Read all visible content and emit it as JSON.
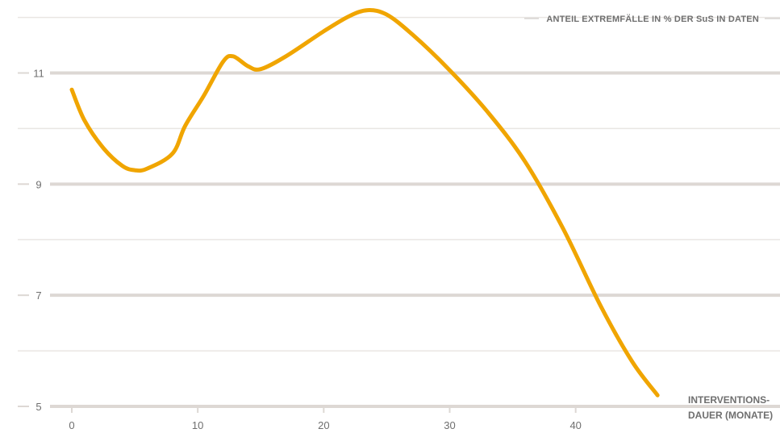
{
  "chart_data": {
    "type": "line",
    "title": "",
    "ylabel": "ANTEIL EXTREMFÄLLE IN % DER SuS IN DATEN",
    "xlabel_lines": [
      "INTERVENTIONS-",
      "DAUER (MONATE)"
    ],
    "xlim": [
      0,
      47
    ],
    "ylim": [
      5,
      12.2
    ],
    "x_ticks": [
      0,
      10,
      20,
      30,
      40
    ],
    "y_ticks": [
      5,
      7,
      9,
      11
    ],
    "y_minor_ticks": [
      6,
      8,
      10,
      12
    ],
    "grid": true,
    "line_color": "#f0a500",
    "grid_major_color": "#ddd8d4",
    "grid_minor_color": "#e9e6e3",
    "series": [
      {
        "x": [
          0,
          1,
          2.5,
          4,
          5,
          6,
          8,
          9,
          10.5,
          12,
          12.8,
          14,
          15,
          17,
          20,
          22,
          23.5,
          25,
          27,
          30,
          33,
          36,
          39,
          42,
          44.5,
          46.5
        ],
        "y": [
          10.7,
          10.15,
          9.65,
          9.33,
          9.25,
          9.28,
          9.55,
          10.05,
          10.6,
          11.2,
          11.3,
          11.12,
          11.07,
          11.3,
          11.75,
          12.02,
          12.13,
          12.05,
          11.7,
          11.05,
          10.3,
          9.4,
          8.2,
          6.8,
          5.8,
          5.2
        ]
      }
    ]
  }
}
